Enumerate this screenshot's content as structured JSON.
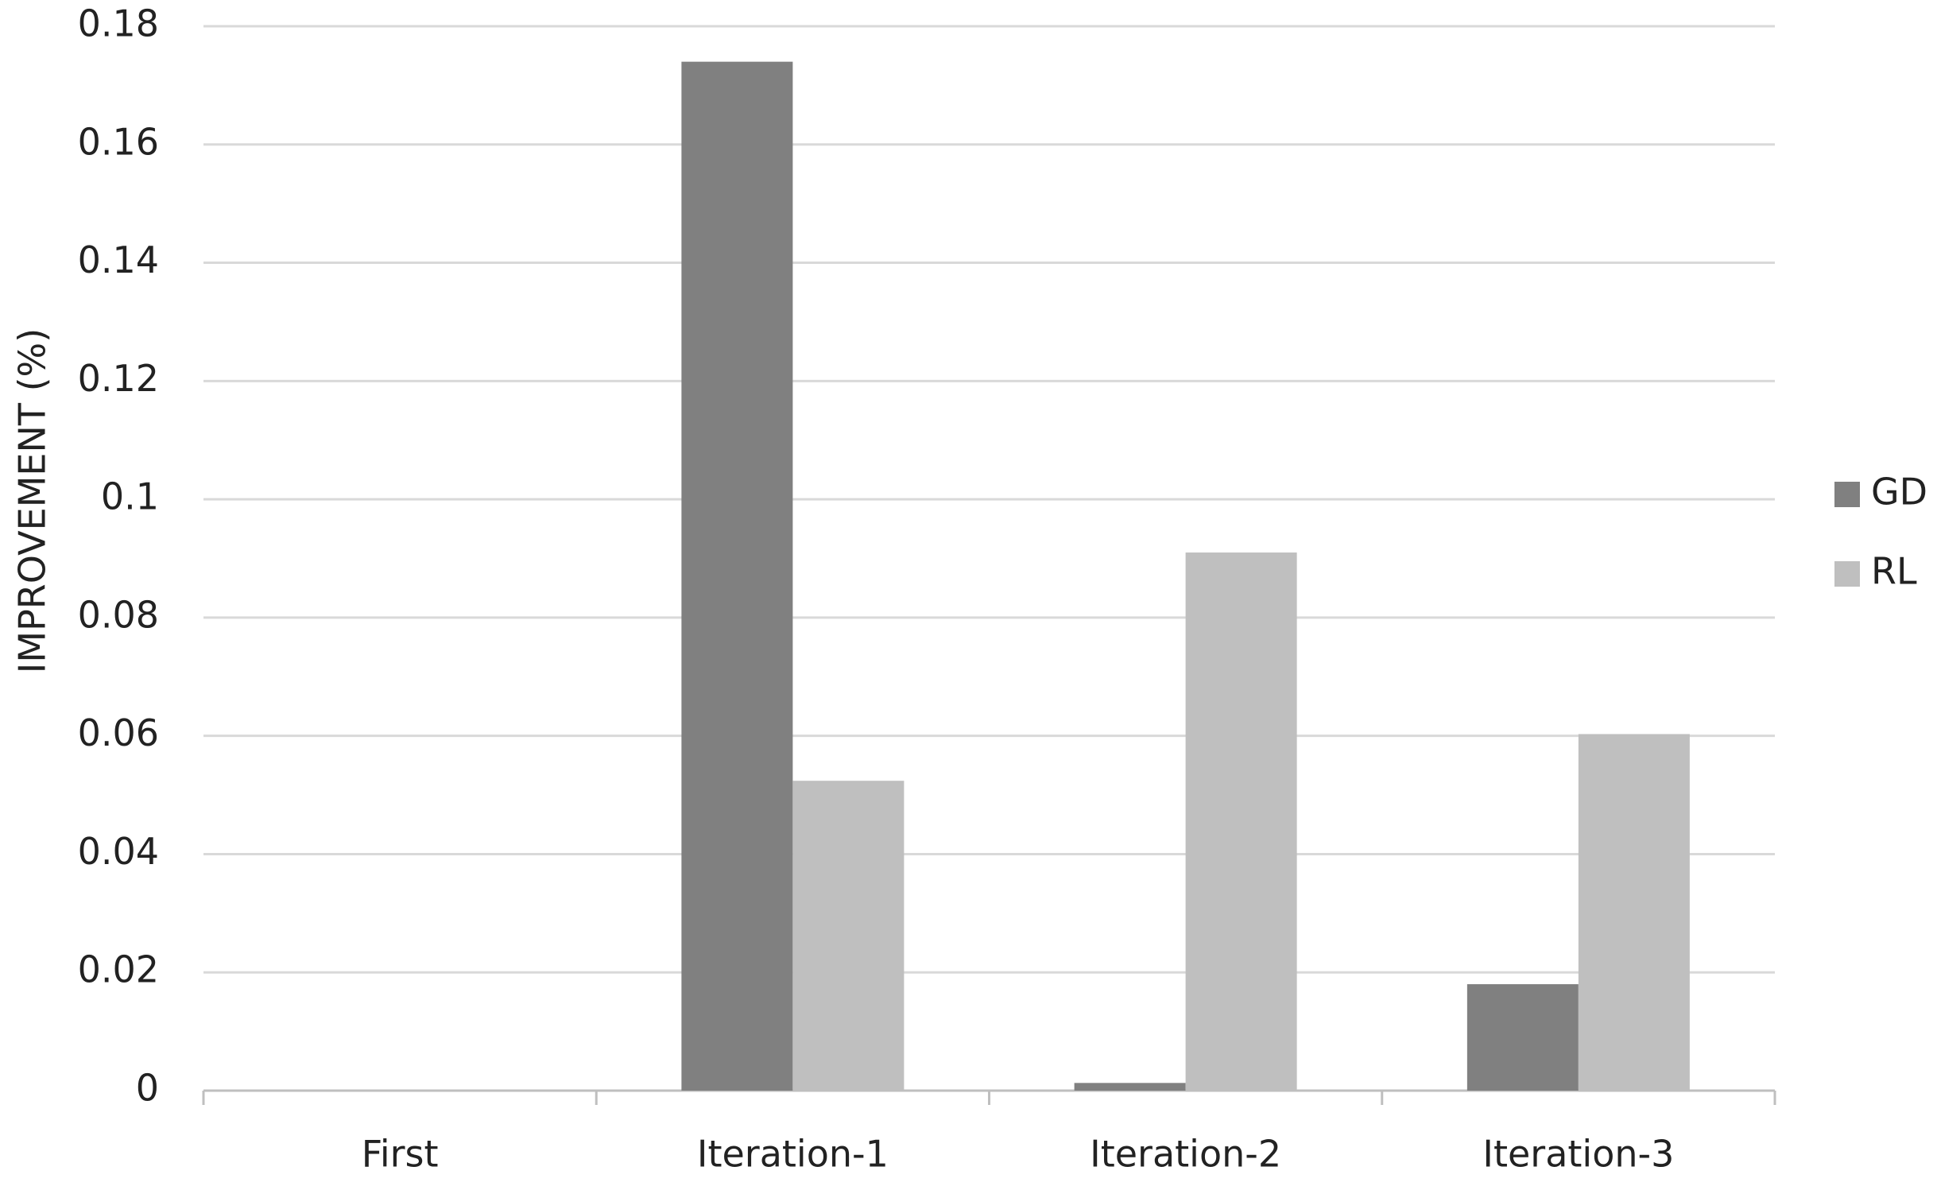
{
  "chart_data": {
    "type": "bar",
    "y_label": "IMPROVEMENT (%)",
    "categories": [
      "First",
      "Iteration-1",
      "Iteration-2",
      "Iteration-3"
    ],
    "series": [
      {
        "name": "GD",
        "color": "#808080",
        "values": [
          0,
          0.174,
          0.0013,
          0.018
        ]
      },
      {
        "name": "RL",
        "color": "#bfbfbf",
        "values": [
          0,
          0.0524,
          0.091,
          0.0603
        ]
      }
    ],
    "ylim": [
      0,
      0.18
    ],
    "yticks": [
      0,
      0.02,
      0.04,
      0.06,
      0.08,
      0.1,
      0.12,
      0.14,
      0.16,
      0.18
    ],
    "grid": true,
    "legend": "right"
  }
}
